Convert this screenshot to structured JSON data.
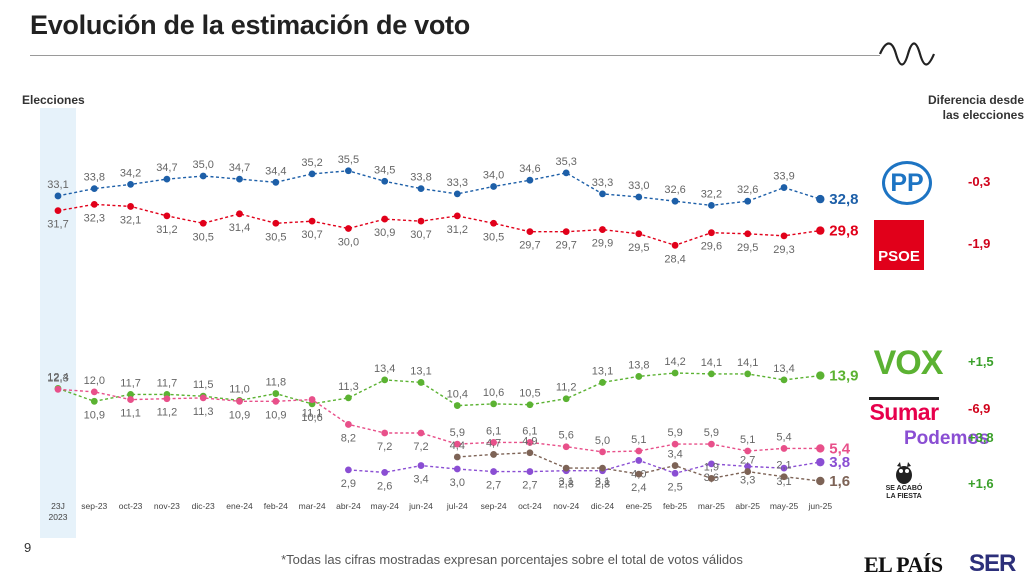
{
  "title": "Evolución de la estimación de voto",
  "left_header": "Elecciones",
  "right_header": {
    "line1": "Diferencia desde",
    "line2": "las elecciones"
  },
  "page_number": "9",
  "footnote": "*Todas las cifras mostradas expresan porcentajes sobre el total de votos válidos",
  "brand_elpais": "EL PAÍS",
  "brand_ser": "SER",
  "chart_data": {
    "type": "line",
    "title": "Evolución de la estimación de voto",
    "categories": [
      "23J|2023",
      "sep-23",
      "oct-23",
      "nov-23",
      "dic-23",
      "ene-24",
      "feb-24",
      "mar-24",
      "abr-24",
      "may-24",
      "jun-24",
      "jul-24",
      "sep-24",
      "oct-24",
      "nov-24",
      "dic-24",
      "ene-25",
      "feb-25",
      "mar-25",
      "abr-25",
      "may-25",
      "jun-25"
    ],
    "series": [
      {
        "name": "PP",
        "color": "#1d5fa8",
        "values": [
          33.1,
          33.8,
          34.2,
          34.7,
          35.0,
          34.7,
          34.4,
          35.2,
          35.5,
          34.5,
          33.8,
          33.3,
          34.0,
          34.6,
          35.3,
          33.3,
          33.0,
          32.6,
          32.2,
          32.6,
          33.9,
          32.8
        ],
        "labels": [
          "33,1",
          "33,8",
          "34,2",
          "34,7",
          "35,0",
          "34,7",
          "34,4",
          "35,2",
          "35,5",
          "34,5",
          "33,8",
          "33,3",
          "34,0",
          "34,6",
          "35,3",
          "33,3",
          "33,0",
          "32,6",
          "32,2",
          "32,6",
          "33,9",
          "32,8"
        ],
        "label_pos": "above"
      },
      {
        "name": "PSOE",
        "color": "#e1001a",
        "values": [
          31.7,
          32.3,
          32.1,
          31.2,
          30.5,
          31.4,
          30.5,
          30.7,
          30.0,
          30.9,
          30.7,
          31.2,
          30.5,
          29.7,
          29.7,
          29.9,
          29.5,
          28.4,
          29.6,
          29.5,
          29.3,
          29.8
        ],
        "labels": [
          "31,7",
          "32,3",
          "32,1",
          "31,2",
          "30,5",
          "31,4",
          "30,5",
          "30,7",
          "30,0",
          "30,9",
          "30,7",
          "31,2",
          "30,5",
          "29,7",
          "29,7",
          "29,9",
          "29,5",
          "28,4",
          "29,6",
          "29,5",
          "29,3",
          "29,8"
        ],
        "label_pos": "below"
      },
      {
        "name": "VOX",
        "color": "#5bb232",
        "values": [
          12.4,
          10.9,
          11.7,
          11.7,
          11.5,
          11.0,
          11.8,
          10.6,
          11.3,
          13.4,
          13.1,
          10.4,
          10.6,
          10.5,
          11.2,
          13.1,
          13.8,
          14.2,
          14.1,
          14.1,
          13.4,
          13.9
        ],
        "labels": [
          "12,4",
          "10,9",
          "11,7",
          "11,7",
          "11,5",
          "11,0",
          "11,8",
          "10,6",
          "11,3",
          "13,4",
          "13,1",
          "10,4",
          "10,6",
          "10,5",
          "11,2",
          "13,1",
          "13,8",
          "14,2",
          "14,1",
          "14,1",
          "13,4",
          "13,9"
        ],
        "label_pos": "above"
      },
      {
        "name": "Sumar",
        "color": "#e8508a",
        "values": [
          12.3,
          12.0,
          11.1,
          11.2,
          11.3,
          10.9,
          10.9,
          11.1,
          8.2,
          7.2,
          7.2,
          5.9,
          6.1,
          6.1,
          5.6,
          5.0,
          5.1,
          5.9,
          5.9,
          5.1,
          5.4,
          5.4
        ],
        "labels": [
          "12,3",
          "12,0",
          "11,1",
          "11,2",
          "11,3",
          "10,9",
          "10,9",
          "11,1",
          "8,2",
          "7,2",
          "7,2",
          "5,9",
          "6,1",
          "6,1",
          "5,6",
          "5,0",
          "5,1",
          "5,9",
          "5,9",
          "5,1",
          "5,4",
          "5,4"
        ],
        "label_pos": "mixed"
      },
      {
        "name": "Podemos",
        "color": "#8a4ed3",
        "values": [
          null,
          null,
          null,
          null,
          null,
          null,
          null,
          null,
          2.9,
          2.6,
          3.4,
          3.0,
          2.7,
          2.7,
          2.8,
          2.8,
          4.0,
          2.5,
          3.6,
          3.3,
          3.1,
          3.8
        ],
        "labels": [
          "",
          "",
          "",
          "",
          "",
          "",
          "",
          "",
          "2,9",
          "2,6",
          "3,4",
          "3,0",
          "2,7",
          "2,7",
          "2,8",
          "2,8",
          "4,0",
          "2,5",
          "3,6",
          "3,3",
          "3,1",
          "3,8"
        ],
        "label_pos": "below"
      },
      {
        "name": "Se Acabó La Fiesta",
        "color": "#7d6356",
        "values": [
          null,
          null,
          null,
          null,
          null,
          null,
          null,
          null,
          null,
          null,
          null,
          4.4,
          4.7,
          4.9,
          3.1,
          3.1,
          2.4,
          3.4,
          1.9,
          2.7,
          2.1,
          1.6
        ],
        "labels": [
          "",
          "",
          "",
          "",
          "",
          "",
          "",
          "",
          "",
          "",
          "",
          "4,4",
          "4,7",
          "4,9",
          "3,1",
          "3,1",
          "2,4",
          "3,4",
          "1,9",
          "2,7",
          "2,1",
          "1,6"
        ],
        "label_pos": "above"
      }
    ],
    "ylabel": "",
    "xlabel": ""
  },
  "parties": [
    {
      "name": "PP",
      "logo_text": "PP",
      "diff": "-0,3",
      "diff_color": "#d0021b"
    },
    {
      "name": "PSOE",
      "logo_text": "PSOE",
      "diff": "-1,9",
      "diff_color": "#d0021b"
    },
    {
      "name": "VOX",
      "logo_text": "VOX",
      "diff": "+1,5",
      "diff_color": "#3aa02a"
    },
    {
      "name": "Sumar",
      "logo_text": "Sumar",
      "diff": "-6,9",
      "diff_color": "#d0021b"
    },
    {
      "name": "Podemos",
      "logo_text": "Podemos",
      "diff": "+3,8",
      "diff_color": "#3aa02a"
    },
    {
      "name": "SALF",
      "logo_text_1": "SE ACABÓ",
      "logo_text_2": "LA FIESTA",
      "diff": "+1,6",
      "diff_color": "#3aa02a"
    }
  ]
}
